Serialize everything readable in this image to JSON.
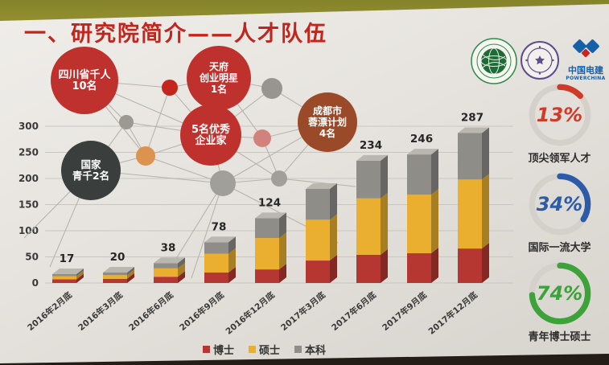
{
  "slide": {
    "title": "一、研究院简介——人才队伍",
    "title_color": "#c2251d",
    "logos": [
      {
        "name": "state-grid-globe-logo"
      },
      {
        "name": "tsinghua-seal-logo"
      },
      {
        "name": "powerchina-logo",
        "text": "中国电建",
        "subtext": "POWERCHINA"
      }
    ]
  },
  "colors": {
    "wall": "#8b892c",
    "slide_bg": "#e6e3de",
    "bottom_shadow": "#241c16",
    "grid": "#c9c6c1",
    "axis_text": "#3a3a3a",
    "value_label": "#262626",
    "network_line": "#b2afa9"
  },
  "chart_data": {
    "type": "bar",
    "stacked": true,
    "title": "",
    "xlabel": "",
    "ylabel": "",
    "categories": [
      "2016年2月底",
      "2016年3月底",
      "2016年6月底",
      "2016年9月底",
      "2016年12月底",
      "2017年3月底",
      "2017年6月底",
      "2017年9月底",
      "2017年12月底"
    ],
    "totals": [
      17,
      20,
      38,
      78,
      124,
      180,
      234,
      246,
      287
    ],
    "total_labels": [
      "17",
      "20",
      "38",
      "78",
      "124",
      "",
      "234",
      "246",
      "287"
    ],
    "series": [
      {
        "name": "博士",
        "color": "#b63731",
        "values": [
          7,
          8,
          12,
          20,
          26,
          43,
          54,
          57,
          66
        ]
      },
      {
        "name": "硕士",
        "color": "#eaaf2f",
        "values": [
          6,
          7,
          16,
          36,
          60,
          78,
          108,
          112,
          132
        ]
      },
      {
        "name": "本科",
        "color": "#8f8d88",
        "values": [
          4,
          5,
          10,
          22,
          38,
          59,
          72,
          77,
          89
        ]
      }
    ],
    "ylim": [
      0,
      300
    ],
    "yticks": [
      0,
      50,
      100,
      150,
      200,
      250,
      300
    ],
    "grid": true,
    "legend_position": "bottom",
    "note": "2017年3月底 total label is hidden behind the 成都市蓉漂计划 bubble; total estimated ≈180. Segment values estimated from bar proportions."
  },
  "bubbles": [
    {
      "label_lines": [
        "四川省千人",
        "10名"
      ],
      "color": "#bf312d"
    },
    {
      "label_lines": [
        "天府",
        "创业明星",
        "1名"
      ],
      "color": "#bf312d"
    },
    {
      "label_lines": [
        "5名优秀",
        "企业家"
      ],
      "color": "#bf312d"
    },
    {
      "label_lines": [
        "成都市",
        "蓉漂计划",
        "4名"
      ],
      "color": "#9a4a28"
    },
    {
      "label_lines": [
        "国家",
        "青千2名"
      ],
      "color": "#3a3f3e"
    }
  ],
  "stats": [
    {
      "percent": 13,
      "value_text": "13%",
      "label": "顶尖领军人才",
      "color": "#d03a28"
    },
    {
      "percent": 34,
      "value_text": "34%",
      "label": "国际一流大学",
      "color": "#2d5ba8"
    },
    {
      "percent": 74,
      "value_text": "74%",
      "label": "青年博士硕士",
      "color": "#3da23a"
    }
  ]
}
